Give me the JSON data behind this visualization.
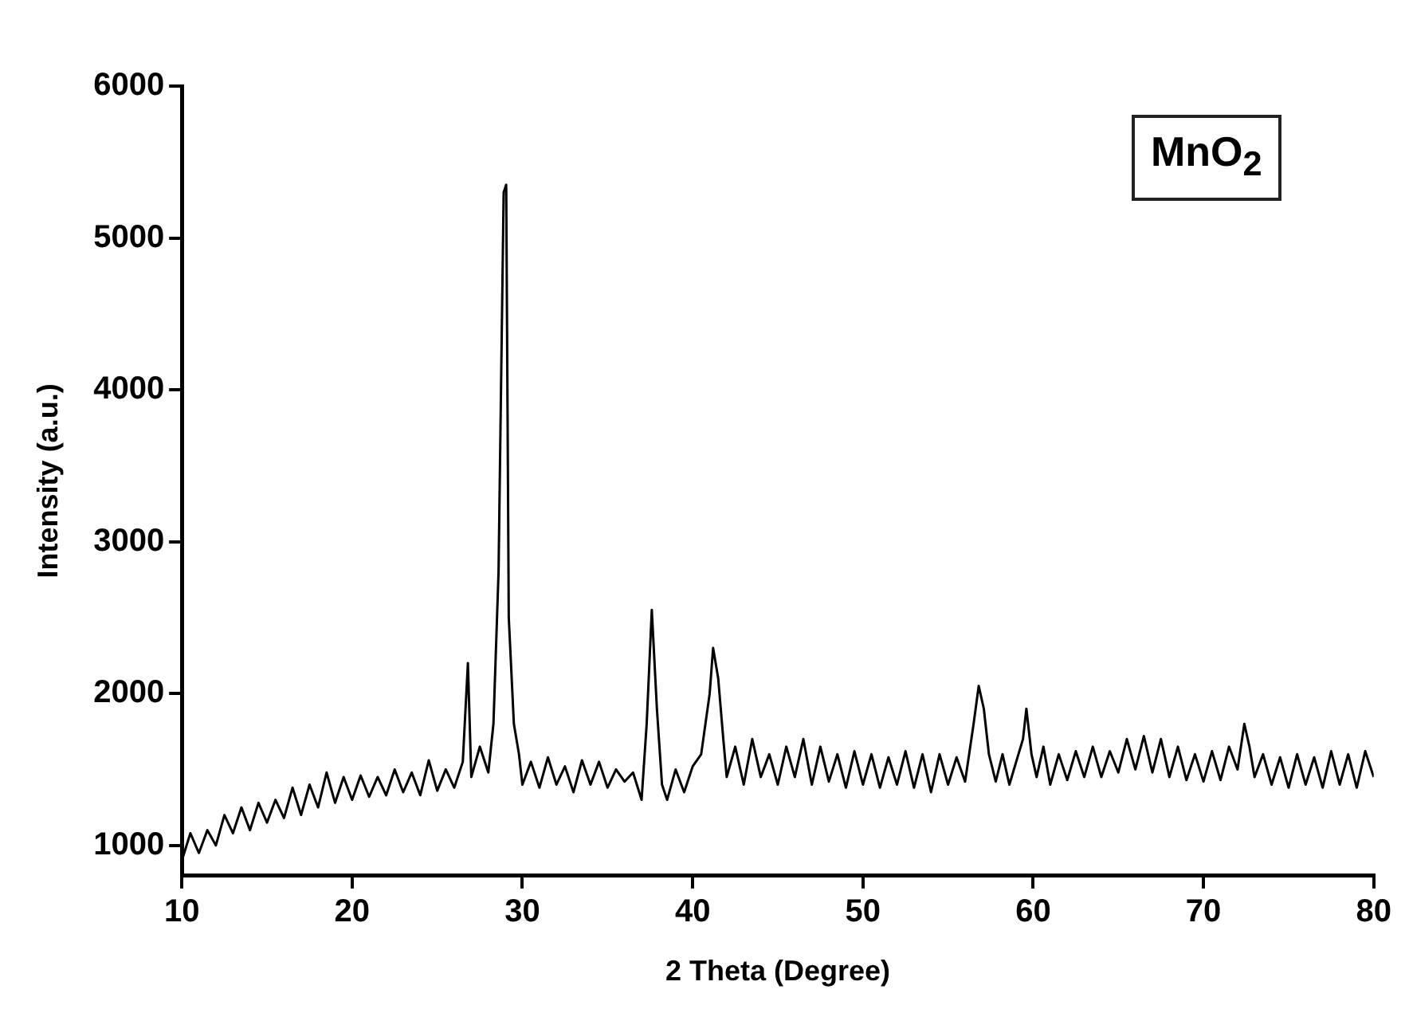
{
  "chart_data": {
    "type": "line",
    "xlabel": "2 Theta (Degree)",
    "ylabel": "Intensity (a.u.)",
    "annotations": [
      "MnO$_{2}$"
    ],
    "xlim": [
      10,
      80
    ],
    "xticks": [
      10,
      20,
      30,
      40,
      50,
      60,
      70,
      80
    ],
    "ylim": [
      800,
      6000
    ],
    "yticks": [
      1000,
      2000,
      3000,
      4000,
      5000,
      6000
    ],
    "grid": false,
    "legend": false,
    "marker": "none",
    "line_style": "solid",
    "series": [
      {
        "color": "#000000",
        "x": [
          10,
          10.5,
          11,
          11.5,
          12,
          12.5,
          13,
          13.5,
          14,
          14.5,
          15,
          15.5,
          16,
          16.5,
          17,
          17.5,
          18,
          18.5,
          19,
          19.5,
          20,
          20.5,
          21,
          21.5,
          22,
          22.5,
          23,
          23.5,
          24,
          24.5,
          25,
          25.5,
          26,
          26.5,
          26.8,
          27,
          27.5,
          28,
          28.3,
          28.6,
          28.9,
          29.05,
          29.2,
          29.5,
          29.8,
          30,
          30.5,
          31,
          31.5,
          32,
          32.5,
          33,
          33.5,
          34,
          34.5,
          35,
          35.5,
          36,
          36.5,
          37,
          37.3,
          37.6,
          37.9,
          38.2,
          38.5,
          39,
          39.5,
          40,
          40.5,
          41,
          41.2,
          41.5,
          41.8,
          42,
          42.5,
          43,
          43.5,
          44,
          44.5,
          45,
          45.5,
          46,
          46.5,
          47,
          47.5,
          48,
          48.5,
          49,
          49.5,
          50,
          50.5,
          51,
          51.5,
          52,
          52.5,
          53,
          53.5,
          54,
          54.5,
          55,
          55.5,
          56,
          56.5,
          56.8,
          57.1,
          57.4,
          57.8,
          58.2,
          58.6,
          59,
          59.4,
          59.6,
          59.9,
          60.2,
          60.6,
          61,
          61.5,
          62,
          62.5,
          63,
          63.5,
          64,
          64.5,
          65,
          65.5,
          66,
          66.5,
          67,
          67.5,
          68,
          68.5,
          69,
          69.5,
          70,
          70.5,
          71,
          71.5,
          72,
          72.4,
          72.7,
          73,
          73.5,
          74,
          74.5,
          75,
          75.5,
          76,
          76.5,
          77,
          77.5,
          78,
          78.5,
          79,
          79.5,
          80
        ],
        "values": [
          900,
          1080,
          950,
          1100,
          1000,
          1200,
          1080,
          1250,
          1100,
          1280,
          1150,
          1300,
          1180,
          1380,
          1200,
          1400,
          1250,
          1480,
          1280,
          1450,
          1300,
          1460,
          1320,
          1450,
          1330,
          1500,
          1350,
          1480,
          1330,
          1560,
          1360,
          1500,
          1380,
          1550,
          2200,
          1450,
          1650,
          1480,
          1800,
          2800,
          5300,
          5350,
          2500,
          1800,
          1600,
          1400,
          1550,
          1380,
          1580,
          1400,
          1520,
          1350,
          1560,
          1400,
          1550,
          1380,
          1500,
          1420,
          1480,
          1300,
          1800,
          2550,
          1900,
          1400,
          1300,
          1500,
          1350,
          1520,
          1600,
          2000,
          2300,
          2100,
          1700,
          1450,
          1650,
          1400,
          1700,
          1450,
          1600,
          1400,
          1650,
          1450,
          1700,
          1400,
          1650,
          1420,
          1600,
          1380,
          1620,
          1400,
          1600,
          1380,
          1580,
          1400,
          1620,
          1380,
          1600,
          1350,
          1600,
          1400,
          1580,
          1420,
          1800,
          2050,
          1900,
          1600,
          1420,
          1600,
          1400,
          1550,
          1700,
          1900,
          1600,
          1450,
          1650,
          1400,
          1600,
          1430,
          1620,
          1450,
          1650,
          1450,
          1620,
          1480,
          1700,
          1500,
          1720,
          1480,
          1700,
          1450,
          1650,
          1430,
          1600,
          1420,
          1620,
          1430,
          1650,
          1500,
          1800,
          1650,
          1450,
          1600,
          1400,
          1580,
          1380,
          1600,
          1400,
          1580,
          1380,
          1620,
          1400,
          1600,
          1380,
          1620,
          1450
        ]
      }
    ]
  }
}
